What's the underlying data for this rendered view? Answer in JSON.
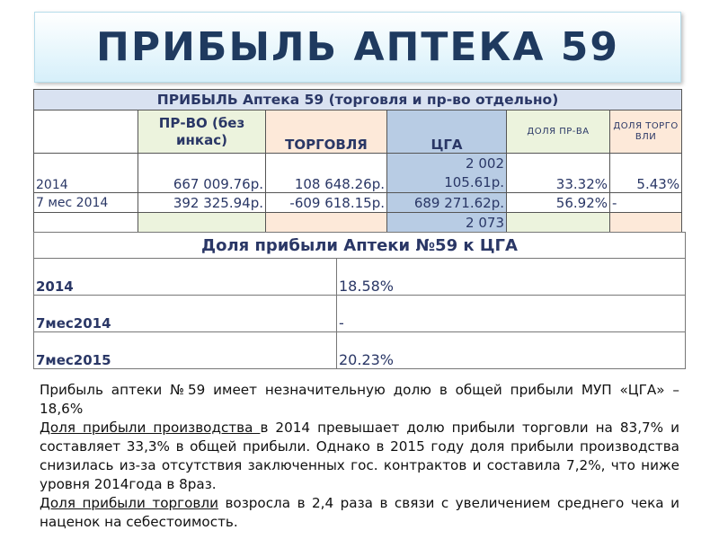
{
  "title": "ПРИБЫЛЬ АПТЕКА 59",
  "table1": {
    "header": "ПРИБЫЛЬ Аптека 59 (торговля и пр-во отдельно)",
    "columns": [
      "",
      "ПР-ВО (без инкас)",
      "ТОРГОВЛЯ",
      "ЦГА",
      "ДОЛЯ ПР-ВА",
      "ДОЛЯ ТОРГОВЛИ"
    ],
    "rows": [
      {
        "label": "2014",
        "prod": "667 009.76р.",
        "trade": "108 648.26р.",
        "cga": "2 002 105.61р.",
        "share_prod": "33.32%",
        "share_trade": "5.43%"
      },
      {
        "label": "7 мес  2014",
        "prod": "392 325.94р.",
        "trade": "-609 618.15р.",
        "cga": "689 271.62р.",
        "share_prod": "56.92%",
        "share_trade": "-"
      },
      {
        "label": "",
        "prod": "",
        "trade": "",
        "cga": "2 073",
        "share_prod": "",
        "share_trade": ""
      }
    ]
  },
  "table2": {
    "header": "Доля прибыли Аптеки №59 к ЦГА",
    "rows": [
      {
        "label": "2014",
        "value": "18.58%"
      },
      {
        "label": "7мес2014",
        "value": "-"
      },
      {
        "label": "7мес2015",
        "value": "20.23%"
      }
    ]
  },
  "text": {
    "p1": "Прибыль аптеки №59 имеет незначительную долю в общей прибыли МУП «ЦГА» – 18,6%",
    "p2_u": "Доля прибыли производства ",
    "p2": "в 2014 превышает долю прибыли торговли на  83,7% и составляет 33,3% в общей прибыли. Однако в 2015 году доля прибыли производства снизилась из-за отсутствия заключенных гос. контрактов  и составила 7,2%, что ниже уровня 2014года в 8раз.",
    "p3_u": "Доля прибыли торговли",
    "p3": " возросла в 2,4 раза в связи с увеличением среднего чека и наценок на себестоимость."
  }
}
